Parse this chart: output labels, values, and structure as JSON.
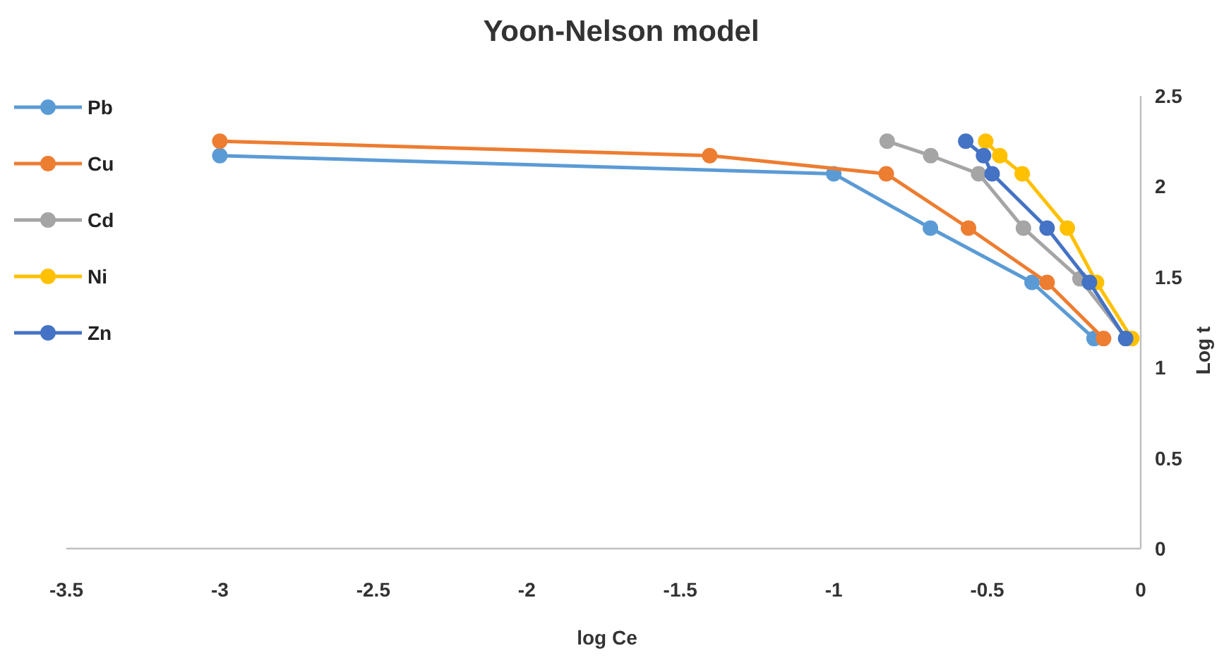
{
  "chart_data": {
    "type": "line",
    "title": "Yoon-Nelson model",
    "xlabel": "log Ce",
    "ylabel": "Log t",
    "xlim": [
      -3.5,
      0
    ],
    "xticks": [
      -3.5,
      -3,
      -2.5,
      -2,
      -1.5,
      -1,
      -0.5,
      0
    ],
    "ylim": [
      0,
      2.5
    ],
    "yticks": [
      0,
      0.5,
      1,
      1.5,
      2,
      2.5
    ],
    "grid": false,
    "legend": "top left",
    "marker": "circle",
    "line_style": "solid",
    "series": [
      {
        "name": "Pb",
        "color": "#5b9bd5",
        "x": [
          -3.0,
          -1.0,
          -0.685,
          -0.354,
          -0.152
        ],
        "values": [
          2.17,
          2.07,
          1.77,
          1.47,
          1.16
        ]
      },
      {
        "name": "Cu",
        "color": "#ed7d31",
        "x": [
          -3.0,
          -1.404,
          -0.829,
          -0.561,
          -0.305,
          -0.121
        ],
        "values": [
          2.25,
          2.17,
          2.07,
          1.77,
          1.47,
          1.16
        ]
      },
      {
        "name": "Cd",
        "color": "#a5a5a5",
        "x": [
          -0.826,
          -0.684,
          -0.528,
          -0.382,
          -0.198,
          -0.046
        ],
        "values": [
          2.25,
          2.17,
          2.07,
          1.77,
          1.49,
          1.16
        ]
      },
      {
        "name": "Ni",
        "color": "#ffc000",
        "x": [
          -0.505,
          -0.459,
          -0.386,
          -0.239,
          -0.144,
          -0.029
        ],
        "values": [
          2.25,
          2.17,
          2.07,
          1.77,
          1.47,
          1.16
        ]
      },
      {
        "name": "Zn",
        "color": "#4472c4",
        "x": [
          -0.57,
          -0.512,
          -0.484,
          -0.305,
          -0.167,
          -0.049
        ],
        "values": [
          2.25,
          2.17,
          2.07,
          1.77,
          1.47,
          1.16
        ]
      }
    ]
  }
}
